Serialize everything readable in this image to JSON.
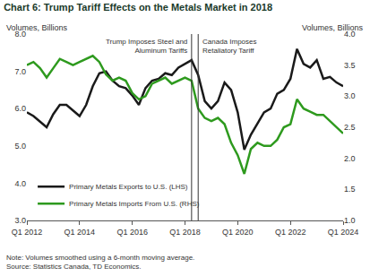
{
  "chart_data": {
    "type": "line",
    "title": "Chart 6: Trump Tariff Effects on the Metals Market in 2018",
    "ylabel": "Volumes, Billions",
    "y2label": "Volumes, Billions",
    "notes": [
      "Note: Volumes smoothed using a 6-month moving average.",
      "Source: Statistics Canada, TD Economics."
    ],
    "categories": [
      "Q1 2012",
      null,
      null,
      null,
      null,
      null,
      null,
      null,
      "Q1 2014",
      null,
      null,
      null,
      null,
      null,
      null,
      null,
      "Q1 2016",
      null,
      null,
      null,
      null,
      null,
      null,
      null,
      "Q1 2018",
      null,
      null,
      null,
      null,
      null,
      null,
      null,
      "Q1 2020",
      null,
      null,
      null,
      null,
      null,
      null,
      null,
      "Q1 2022",
      null,
      null,
      null,
      null,
      null,
      null,
      null,
      "Q1 2024"
    ],
    "series": [
      {
        "name": "Primary Metals Exports to U.S. (LHS)",
        "color": "#1a1a1a",
        "axis": "y",
        "values": [
          5.9,
          5.8,
          5.65,
          5.5,
          5.85,
          6.1,
          6.1,
          5.95,
          5.8,
          6.1,
          6.6,
          6.95,
          7.0,
          6.75,
          6.6,
          6.55,
          6.35,
          6.1,
          6.55,
          6.75,
          6.8,
          6.95,
          6.9,
          7.1,
          7.2,
          7.3,
          6.9,
          6.2,
          6.0,
          6.2,
          6.7,
          6.5,
          5.9,
          4.9,
          5.3,
          5.6,
          5.9,
          6.0,
          6.4,
          6.5,
          6.8,
          7.6,
          7.2,
          7.1,
          7.3,
          6.8,
          6.85,
          6.7,
          6.6
        ]
      },
      {
        "name": "Primary Metals Imports From U.S. (RHS)",
        "color": "#2e9a1e",
        "axis": "y2",
        "values": [
          3.5,
          3.55,
          3.45,
          3.3,
          3.45,
          3.6,
          3.55,
          3.5,
          3.55,
          3.6,
          3.65,
          3.55,
          3.35,
          3.25,
          3.3,
          3.25,
          3.05,
          2.95,
          3.0,
          3.2,
          3.25,
          3.3,
          3.2,
          3.25,
          3.3,
          3.25,
          2.8,
          2.65,
          2.6,
          2.65,
          2.55,
          2.25,
          2.05,
          1.75,
          2.15,
          2.25,
          2.2,
          2.2,
          2.3,
          2.5,
          2.55,
          2.95,
          2.8,
          2.75,
          2.7,
          2.7,
          2.6,
          2.5,
          2.4
        ]
      }
    ],
    "ylim": [
      3,
      8
    ],
    "yticks": [
      {
        "value": 3,
        "label": "3.0"
      },
      {
        "value": 4,
        "label": "4.0"
      },
      {
        "value": 5,
        "label": "5.0"
      },
      {
        "value": 6,
        "label": "6.0"
      },
      {
        "value": 7,
        "label": "7.0"
      },
      {
        "value": 8,
        "label": "8.0"
      }
    ],
    "y2lim": [
      1,
      4
    ],
    "y2ticks": [
      {
        "value": 1,
        "label": "1.0"
      },
      {
        "value": 1.5,
        "label": "1.5"
      },
      {
        "value": 2,
        "label": "2.0"
      },
      {
        "value": 2.5,
        "label": "2.5"
      },
      {
        "value": 3,
        "label": "3.0"
      },
      {
        "value": 3.5,
        "label": "3.5"
      },
      {
        "value": 4,
        "label": "4.0"
      }
    ],
    "grid": false,
    "legend": "lower left",
    "annotations": [
      {
        "x": 25,
        "text": "Trump Imposes Steel and Aluminum Tariffs",
        "lines": [
          "Trump Imposes Steel and",
          "Aluminum Tariffs"
        ]
      },
      {
        "x": 26,
        "text": "Canada Imposes Retaliatory Tariff",
        "lines": [
          "Canada Imposes",
          "Retaliatory Tariff"
        ]
      }
    ]
  }
}
